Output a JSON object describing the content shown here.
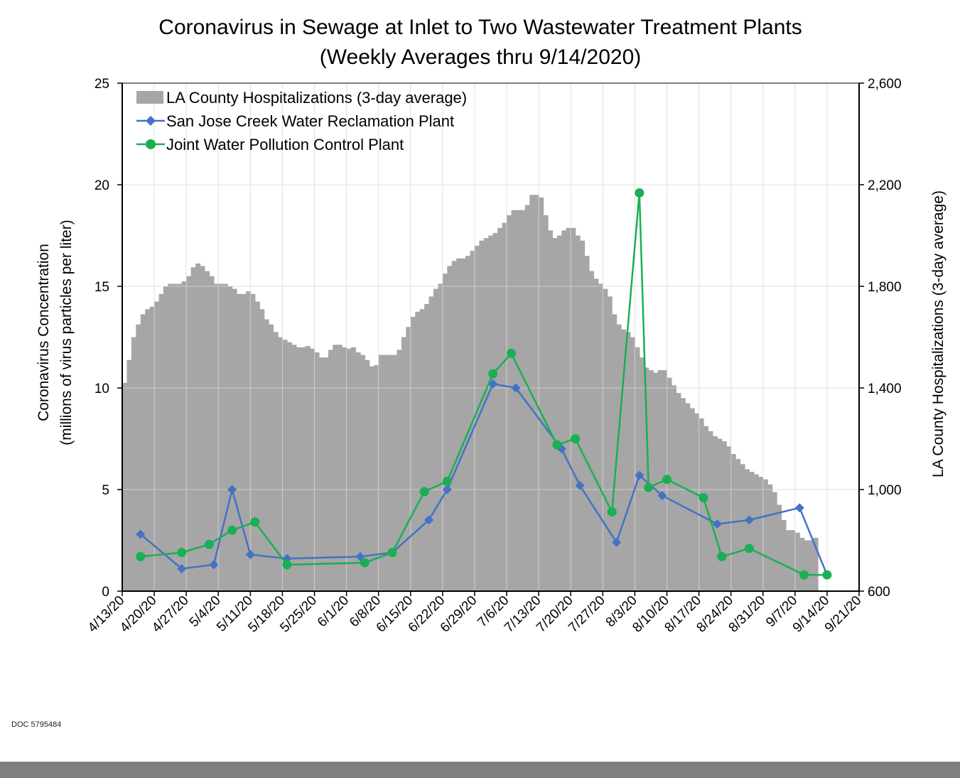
{
  "chart_data": {
    "type": "line",
    "title": "Coronavirus in Sewage at Inlet to Two Wastewater Treatment Plants",
    "subtitle": "(Weekly Averages thru 9/14/2020)",
    "ylabel": "Coronavirus Concentration",
    "ylabel2": "(millions of virus particles per liter)",
    "y2label": "LA County Hospitalizations (3-day average)",
    "ylim": [
      0,
      25
    ],
    "y2lim": [
      600,
      2600
    ],
    "x_start": "2020-04-13",
    "x_end": "2020-09-21",
    "yticks": [
      0,
      5,
      10,
      15,
      20,
      25
    ],
    "y2ticks": [
      "600",
      "1,000",
      "1,400",
      "1,800",
      "2,200",
      "2,600"
    ],
    "y2tick_values": [
      600,
      1000,
      1400,
      1800,
      2200,
      2600
    ],
    "xticks": [
      "4/13/20",
      "4/20/20",
      "4/27/20",
      "5/4/20",
      "5/11/20",
      "5/18/20",
      "5/25/20",
      "6/1/20",
      "6/8/20",
      "6/15/20",
      "6/22/20",
      "6/29/20",
      "7/6/20",
      "7/13/20",
      "7/20/20",
      "7/27/20",
      "8/3/20",
      "8/10/20",
      "8/17/20",
      "8/24/20",
      "8/31/20",
      "9/7/20",
      "9/14/20",
      "9/21/20"
    ],
    "grid": true,
    "legend_position": "top-left",
    "legend": [
      "LA County Hospitalizations (3-day average)",
      "San Jose Creek Water Reclamation Plant",
      "Joint Water Pollution Control Plant"
    ],
    "hospitalizations": {
      "name": "LA County Hospitalizations (3-day average)",
      "start_day_offset": 0,
      "values": [
        1420,
        1510,
        1600,
        1650,
        1690,
        1710,
        1720,
        1740,
        1770,
        1800,
        1810,
        1810,
        1810,
        1820,
        1840,
        1875,
        1890,
        1880,
        1860,
        1840,
        1810,
        1810,
        1810,
        1800,
        1790,
        1770,
        1770,
        1780,
        1770,
        1740,
        1710,
        1670,
        1650,
        1620,
        1600,
        1590,
        1580,
        1570,
        1560,
        1560,
        1565,
        1555,
        1540,
        1520,
        1520,
        1550,
        1570,
        1570,
        1560,
        1555,
        1560,
        1540,
        1530,
        1510,
        1485,
        1490,
        1530,
        1530,
        1530,
        1530,
        1550,
        1600,
        1640,
        1680,
        1700,
        1710,
        1730,
        1760,
        1790,
        1810,
        1850,
        1880,
        1900,
        1910,
        1910,
        1920,
        1940,
        1960,
        1980,
        1990,
        2000,
        2010,
        2030,
        2050,
        2080,
        2100,
        2100,
        2100,
        2120,
        2160,
        2160,
        2150,
        2080,
        2020,
        1990,
        2000,
        2020,
        2030,
        2030,
        2000,
        1980,
        1920,
        1860,
        1830,
        1810,
        1790,
        1760,
        1690,
        1650,
        1630,
        1620,
        1600,
        1560,
        1520,
        1480,
        1470,
        1460,
        1470,
        1470,
        1440,
        1410,
        1380,
        1360,
        1340,
        1320,
        1300,
        1280,
        1250,
        1230,
        1210,
        1200,
        1190,
        1170,
        1140,
        1120,
        1100,
        1080,
        1070,
        1060,
        1050,
        1040,
        1020,
        990,
        940,
        880,
        840,
        840,
        830,
        810,
        800,
        800,
        810
      ]
    },
    "series": [
      {
        "name": "San Jose Creek Water Reclamation Plant",
        "color": "#4472c4",
        "marker": "diamond",
        "points": [
          {
            "day": 4,
            "value": 2.8
          },
          {
            "day": 13,
            "value": 1.1
          },
          {
            "day": 20,
            "value": 1.3
          },
          {
            "day": 24,
            "value": 5.0
          },
          {
            "day": 28,
            "value": 1.8
          },
          {
            "day": 36,
            "value": 1.6
          },
          {
            "day": 52,
            "value": 1.7
          },
          {
            "day": 59,
            "value": 1.9
          },
          {
            "day": 67,
            "value": 3.5
          },
          {
            "day": 71,
            "value": 5.0
          },
          {
            "day": 81,
            "value": 10.2
          },
          {
            "day": 86,
            "value": 10.0
          },
          {
            "day": 96,
            "value": 7.0
          },
          {
            "day": 100,
            "value": 5.2
          },
          {
            "day": 108,
            "value": 2.4
          },
          {
            "day": 113,
            "value": 5.7
          },
          {
            "day": 118,
            "value": 4.7
          },
          {
            "day": 130,
            "value": 3.3
          },
          {
            "day": 137,
            "value": 3.5
          },
          {
            "day": 148,
            "value": 4.1
          },
          {
            "day": 154,
            "value": 0.8
          }
        ]
      },
      {
        "name": "Joint Water Pollution Control Plant",
        "color": "#1aaf54",
        "marker": "circle",
        "points": [
          {
            "day": 4,
            "value": 1.7
          },
          {
            "day": 13,
            "value": 1.9
          },
          {
            "day": 19,
            "value": 2.3
          },
          {
            "day": 24,
            "value": 3.0
          },
          {
            "day": 29,
            "value": 3.4
          },
          {
            "day": 36,
            "value": 1.3
          },
          {
            "day": 53,
            "value": 1.4
          },
          {
            "day": 59,
            "value": 1.9
          },
          {
            "day": 66,
            "value": 4.9
          },
          {
            "day": 71,
            "value": 5.4
          },
          {
            "day": 81,
            "value": 10.7
          },
          {
            "day": 85,
            "value": 11.7
          },
          {
            "day": 95,
            "value": 7.2
          },
          {
            "day": 99,
            "value": 7.5
          },
          {
            "day": 107,
            "value": 3.9
          },
          {
            "day": 113,
            "value": 19.6
          },
          {
            "day": 115,
            "value": 5.1
          },
          {
            "day": 119,
            "value": 5.5
          },
          {
            "day": 127,
            "value": 4.6
          },
          {
            "day": 131,
            "value": 1.7
          },
          {
            "day": 137,
            "value": 2.1
          },
          {
            "day": 149,
            "value": 0.8
          },
          {
            "day": 154,
            "value": 0.8
          }
        ]
      }
    ]
  },
  "footer": {
    "doc_id": "DOC 5795484"
  }
}
